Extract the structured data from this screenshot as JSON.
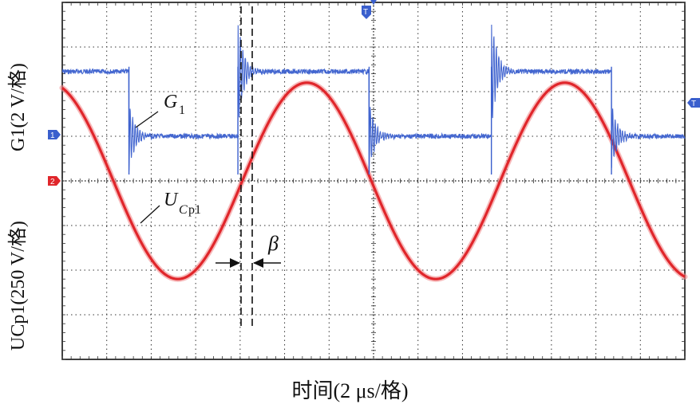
{
  "chart_data": {
    "type": "line",
    "title": "",
    "xlabel": "时间(2 μs/格)",
    "ylabel_series1": "G1(2 V/格)",
    "ylabel_series2": "UCp1(250 V/格)",
    "grid": true,
    "x_divisions": 14,
    "y_divisions": 8,
    "x_unit_per_div_us": 2,
    "series": [
      {
        "name": "G1",
        "color": "#3a5fcd",
        "channel_marker": "1",
        "volts_per_div": 2,
        "levels_div_above_ch1_ref": {
          "high": 1.45,
          "low": 0
        },
        "transition_times_us": [
          3.0,
          7.9,
          13.8,
          19.3,
          24.7
        ],
        "initial_state": "high"
      },
      {
        "name": "UCp1",
        "color": "#e0262b",
        "channel_marker": "2",
        "volts_per_div": 250,
        "amplitude_div": 2.2,
        "period_us": 11.6,
        "peak_time_us": 11.0,
        "offset_div_above_ch2_ref": 0,
        "peak_voltage_V": 550
      }
    ],
    "annotations": {
      "g1_label": "G",
      "g1_sub": "1",
      "uc_label": "U",
      "uc_sub1": "C",
      "uc_sub2": "p1",
      "beta_label": "β",
      "beta_interval_us": [
        7.9,
        8.5
      ]
    },
    "markers": {
      "ch1": "1",
      "ch2": "2",
      "trigger_top": "T",
      "trigger_right": "T"
    }
  }
}
